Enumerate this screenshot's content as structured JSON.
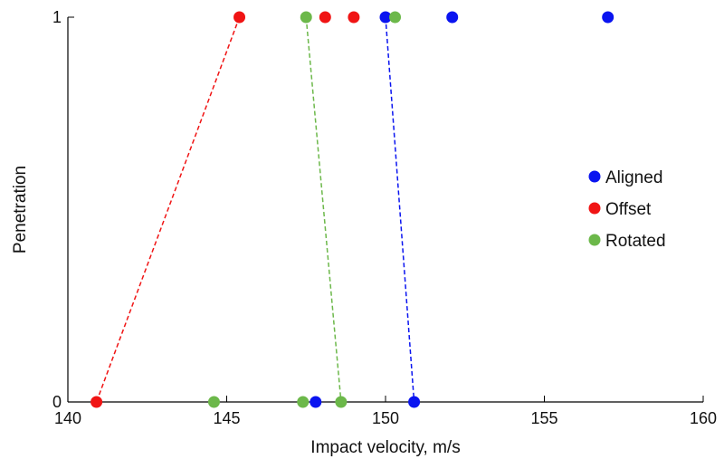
{
  "chart_data": {
    "type": "scatter",
    "xlabel": "Impact velocity, m/s",
    "ylabel": "Penetration",
    "xlim": [
      140,
      160
    ],
    "ylim": [
      0,
      1
    ],
    "x_ticks": [
      140,
      145,
      150,
      155,
      160
    ],
    "y_ticks": [
      0,
      1
    ],
    "x_tick_labels": [
      "140",
      "145",
      "150",
      "155",
      "160"
    ],
    "y_tick_labels": [
      "0",
      "1"
    ],
    "grid": false,
    "legend_position": "right",
    "series": [
      {
        "name": "Aligned",
        "color": "#0a14f0",
        "points": [
          [
            147.8,
            0
          ],
          [
            150.9,
            0
          ],
          [
            150.0,
            1
          ],
          [
            152.1,
            1
          ],
          [
            157.0,
            1
          ]
        ],
        "threshold_line": [
          [
            150.0,
            1
          ],
          [
            150.9,
            0
          ]
        ]
      },
      {
        "name": "Offset",
        "color": "#f01414",
        "points": [
          [
            140.9,
            0
          ],
          [
            145.4,
            1
          ],
          [
            148.1,
            1
          ],
          [
            149.0,
            1
          ]
        ],
        "threshold_line": [
          [
            145.4,
            1
          ],
          [
            140.9,
            0
          ]
        ]
      },
      {
        "name": "Rotated",
        "color": "#6cb84a",
        "points": [
          [
            144.6,
            0
          ],
          [
            147.4,
            0
          ],
          [
            148.6,
            0
          ],
          [
            147.5,
            1
          ],
          [
            150.3,
            1
          ]
        ],
        "threshold_line": [
          [
            147.5,
            1
          ],
          [
            148.6,
            0
          ]
        ]
      }
    ]
  }
}
